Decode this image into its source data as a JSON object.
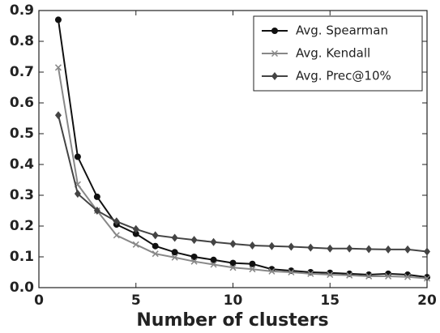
{
  "chart_data": {
    "type": "line",
    "xlabel": "Number of clusters",
    "x": [
      1,
      2,
      3,
      4,
      5,
      6,
      7,
      8,
      9,
      10,
      11,
      12,
      13,
      14,
      15,
      16,
      17,
      18,
      19,
      20
    ],
    "series": [
      {
        "name": "Avg. Spearman",
        "color": "#111111",
        "marker": "circle",
        "values": [
          0.87,
          0.425,
          0.295,
          0.205,
          0.175,
          0.135,
          0.115,
          0.1,
          0.09,
          0.08,
          0.077,
          0.06,
          0.055,
          0.05,
          0.048,
          0.045,
          0.042,
          0.045,
          0.042,
          0.034
        ]
      },
      {
        "name": "Avg. Kendall",
        "color": "#888888",
        "marker": "x",
        "values": [
          0.715,
          0.335,
          0.25,
          0.17,
          0.14,
          0.11,
          0.098,
          0.085,
          0.075,
          0.065,
          0.06,
          0.053,
          0.05,
          0.045,
          0.042,
          0.04,
          0.037,
          0.037,
          0.035,
          0.03
        ]
      },
      {
        "name": "Avg. Prec@10%",
        "color": "#444444",
        "marker": "diamond",
        "values": [
          0.56,
          0.305,
          0.25,
          0.215,
          0.19,
          0.17,
          0.162,
          0.155,
          0.148,
          0.142,
          0.137,
          0.135,
          0.133,
          0.13,
          0.127,
          0.127,
          0.125,
          0.124,
          0.124,
          0.117
        ]
      }
    ],
    "xlim": [
      0,
      20
    ],
    "xticks": [
      0,
      5,
      10,
      15,
      20
    ],
    "ylim": [
      0,
      0.9
    ],
    "yticks": [
      {
        "value": 0,
        "label": "0.0"
      },
      0.1,
      0.2,
      0.3,
      0.4,
      0.5,
      0.6,
      0.7,
      0.8,
      0.9
    ],
    "legend": "upper right",
    "grid": false
  }
}
